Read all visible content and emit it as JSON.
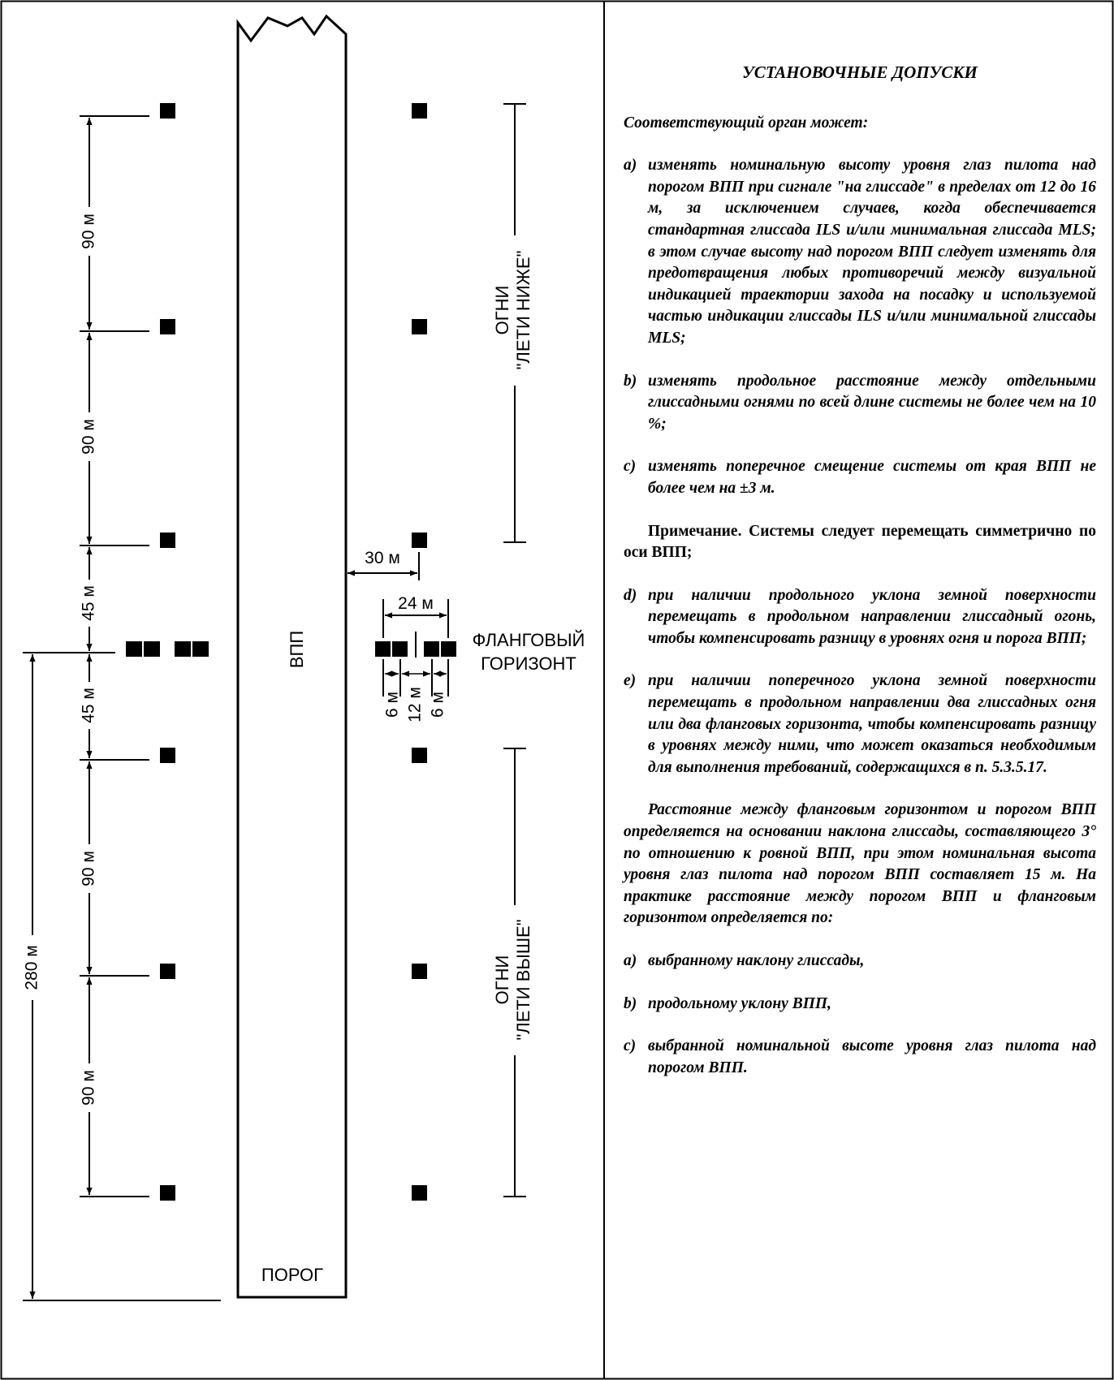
{
  "diagram": {
    "runway_label": "ВПП",
    "threshold_label": "ПОРОГ",
    "wing_bar_label": [
      "ФЛАНГОВЫЙ",
      "ГОРИЗОНТ"
    ],
    "fly_down_label": [
      "ОГНИ",
      "\"ЛЕТИ НИЖЕ\""
    ],
    "fly_up_label": [
      "ОГНИ",
      "\"ЛЕТИ ВЫШЕ\""
    ],
    "dimensions": {
      "d_90_1": "90 м",
      "d_90_2": "90 м",
      "d_45_1": "45 м",
      "d_45_2": "45 м",
      "d_90_3": "90 м",
      "d_90_4": "90 м",
      "d_280": "280 м",
      "d_30": "30 м",
      "d_24": "24 м",
      "d_6a": "6 м",
      "d_12": "12 м",
      "d_6b": "6 м"
    }
  },
  "text": {
    "title": "УСТАНОВОЧНЫЕ ДОПУСКИ",
    "intro": "Соответствующий орган может:",
    "items1": [
      {
        "letter": "a)",
        "text": "изменять номинальную высоту уровня глаз пилота над порогом ВПП при сигнале \"на глиссаде\" в пределах от 12 до 16 м, за исключением случаев, когда обеспечивается стандартная глиссада ILS и/или минимальная глиссада MLS; в этом случае высоту над порогом ВПП следует изменять для предотвращения любых противоречий между визуальной индикацией траектории захода на посадку и используемой частью индикации глиссады ILS и/или минимальной глиссады MLS;"
      },
      {
        "letter": "b)",
        "text": "изменять продольное расстояние между отдельными глиссадными огнями по всей длине системы не более чем на 10 %;"
      },
      {
        "letter": "c)",
        "text": "изменять поперечное смещение системы от края ВПП не более чем на ±3 м."
      }
    ],
    "note": "Примечание. Системы следует перемещать симметрично по оси ВПП;",
    "items2": [
      {
        "letter": "d)",
        "text": "при наличии продольного уклона земной поверхности перемещать в продольном направлении глиссадный огонь, чтобы компенсировать разницу в уровнях огня и порога ВПП;"
      },
      {
        "letter": "e)",
        "text": "при наличии поперечного уклона земной поверхности перемещать в продольном направлении два глиссадных огня или два фланговых горизонта, чтобы компенсировать разницу в уровнях между ними, что может оказаться необходимым для выполнения требований, содержащихся в п. 5.3.5.17."
      }
    ],
    "paragraph": "Расстояние между фланговым горизонтом и порогом ВПП определяется на основании наклона глиссады, составляющего 3° по отношению к ровной ВПП, при этом номинальная высота уровня глаз пилота над порогом ВПП составляет 15 м. На практике расстояние между порогом ВПП и фланговым горизонтом определяется по:",
    "items3": [
      {
        "letter": "a)",
        "text": "выбранному наклону глиссады,"
      },
      {
        "letter": "b)",
        "text": "продольному уклону ВПП,"
      },
      {
        "letter": "c)",
        "text": "выбранной номинальной высоте уровня глаз пилота над порогом ВПП."
      }
    ]
  }
}
